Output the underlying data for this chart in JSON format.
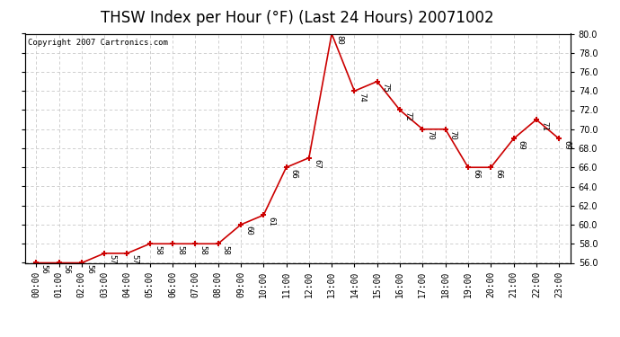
{
  "title": "THSW Index per Hour (°F) (Last 24 Hours) 20071002",
  "copyright": "Copyright 2007 Cartronics.com",
  "hours": [
    0,
    1,
    2,
    3,
    4,
    5,
    6,
    7,
    8,
    9,
    10,
    11,
    12,
    13,
    14,
    15,
    16,
    17,
    18,
    19,
    20,
    21,
    22,
    23
  ],
  "values": [
    56,
    56,
    56,
    57,
    57,
    58,
    58,
    58,
    58,
    60,
    61,
    66,
    67,
    80,
    74,
    75,
    72,
    70,
    70,
    66,
    66,
    69,
    71,
    69
  ],
  "xlabels": [
    "00:00",
    "01:00",
    "02:00",
    "03:00",
    "04:00",
    "05:00",
    "06:00",
    "07:00",
    "08:00",
    "09:00",
    "10:00",
    "11:00",
    "12:00",
    "13:00",
    "14:00",
    "15:00",
    "16:00",
    "17:00",
    "18:00",
    "19:00",
    "20:00",
    "21:00",
    "22:00",
    "23:00"
  ],
  "ylim": [
    56.0,
    80.0
  ],
  "yticks": [
    56.0,
    58.0,
    60.0,
    62.0,
    64.0,
    66.0,
    68.0,
    70.0,
    72.0,
    74.0,
    76.0,
    78.0,
    80.0
  ],
  "line_color": "#cc0000",
  "marker_color": "#cc0000",
  "bg_color": "#ffffff",
  "plot_bg_color": "#ffffff",
  "grid_color": "#c8c8c8",
  "title_fontsize": 12,
  "label_fontsize": 7,
  "annotation_fontsize": 6.5,
  "copyright_fontsize": 6.5
}
